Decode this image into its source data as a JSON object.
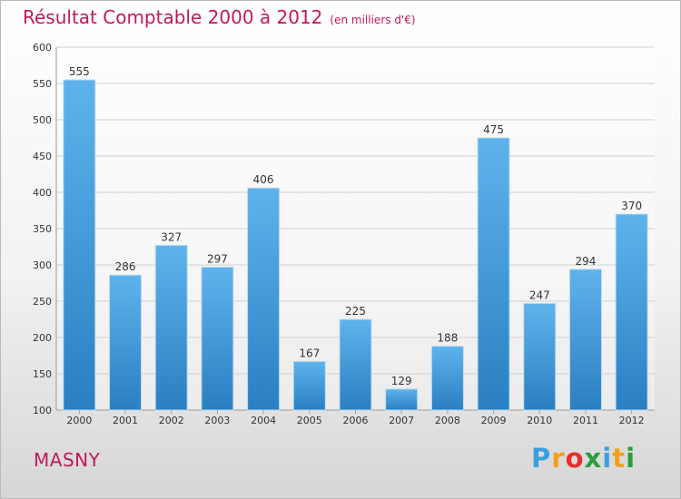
{
  "chart_data": {
    "type": "bar",
    "title": "Résultat Comptable 2000 à 2012",
    "subtitle": "(en milliers d'€)",
    "xlabel": "",
    "ylabel": "",
    "categories": [
      "2000",
      "2001",
      "2002",
      "2003",
      "2004",
      "2005",
      "2006",
      "2007",
      "2008",
      "2009",
      "2010",
      "2011",
      "2012"
    ],
    "values": [
      555,
      286,
      327,
      297,
      406,
      167,
      225,
      129,
      188,
      475,
      247,
      294,
      370
    ],
    "ylim": [
      100,
      600
    ],
    "yticks": [
      100,
      150,
      200,
      250,
      300,
      350,
      400,
      450,
      500,
      550,
      600
    ],
    "grid": true,
    "bar_color": "#4a9fdf"
  },
  "town": "MASNY",
  "brand": {
    "letters": [
      "P",
      "r",
      "o",
      "x",
      "i",
      "t",
      "i"
    ],
    "colors": [
      "#3a9fdd",
      "#f0a21e",
      "#e2312b",
      "#2d9e3a",
      "#3a9fdd",
      "#f0a21e",
      "#2d9e3a"
    ]
  }
}
